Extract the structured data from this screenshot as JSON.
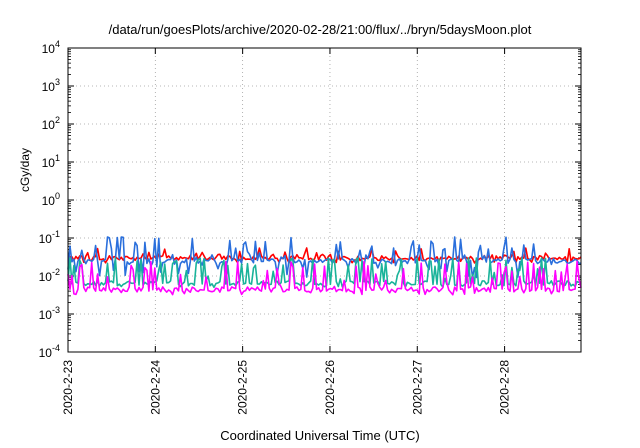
{
  "chart_data": {
    "type": "line",
    "title": "/data/run/goesPlots/archive/2020-02-28/21:00/flux/../bryn/5daysMoon.plot",
    "xlabel": "Coordinated Universal Time (UTC)",
    "ylabel": "cGy/day",
    "yscale": "log",
    "ylim": [
      0.0001,
      10000
    ],
    "xlim": [
      "2020-2-23",
      "2020-2-28 21:00"
    ],
    "grid": true,
    "legend": "none",
    "y_ticks": [
      {
        "base": "10",
        "exp": "4"
      },
      {
        "base": "10",
        "exp": "3"
      },
      {
        "base": "10",
        "exp": "2"
      },
      {
        "base": "10",
        "exp": "1"
      },
      {
        "base": "10",
        "exp": "0"
      },
      {
        "base": "10",
        "exp": "-1"
      },
      {
        "base": "10",
        "exp": "-2"
      },
      {
        "base": "10",
        "exp": "-3"
      },
      {
        "base": "10",
        "exp": "-4"
      }
    ],
    "x_ticks": [
      "2020-2-23",
      "2020-2-24",
      "2020-2-25",
      "2020-2-26",
      "2020-2-27",
      "2020-2-28"
    ],
    "x_days_span": 5.875,
    "series": [
      {
        "color": "#ff0000",
        "baseline": 0.03,
        "spike_max": 0.055,
        "spike_prob": 0.35,
        "dip": 0.022
      },
      {
        "color": "#2a6fdc",
        "baseline": 0.025,
        "spike_max": 0.11,
        "spike_prob": 0.4,
        "dip": 0.008
      },
      {
        "color": "#1ab39a",
        "baseline": 0.0065,
        "spike_max": 0.03,
        "spike_prob": 0.45,
        "dip": 0.005
      },
      {
        "color": "#ff00ff",
        "baseline": 0.0045,
        "spike_max": 0.025,
        "spike_prob": 0.45,
        "dip": 0.0032
      }
    ]
  }
}
